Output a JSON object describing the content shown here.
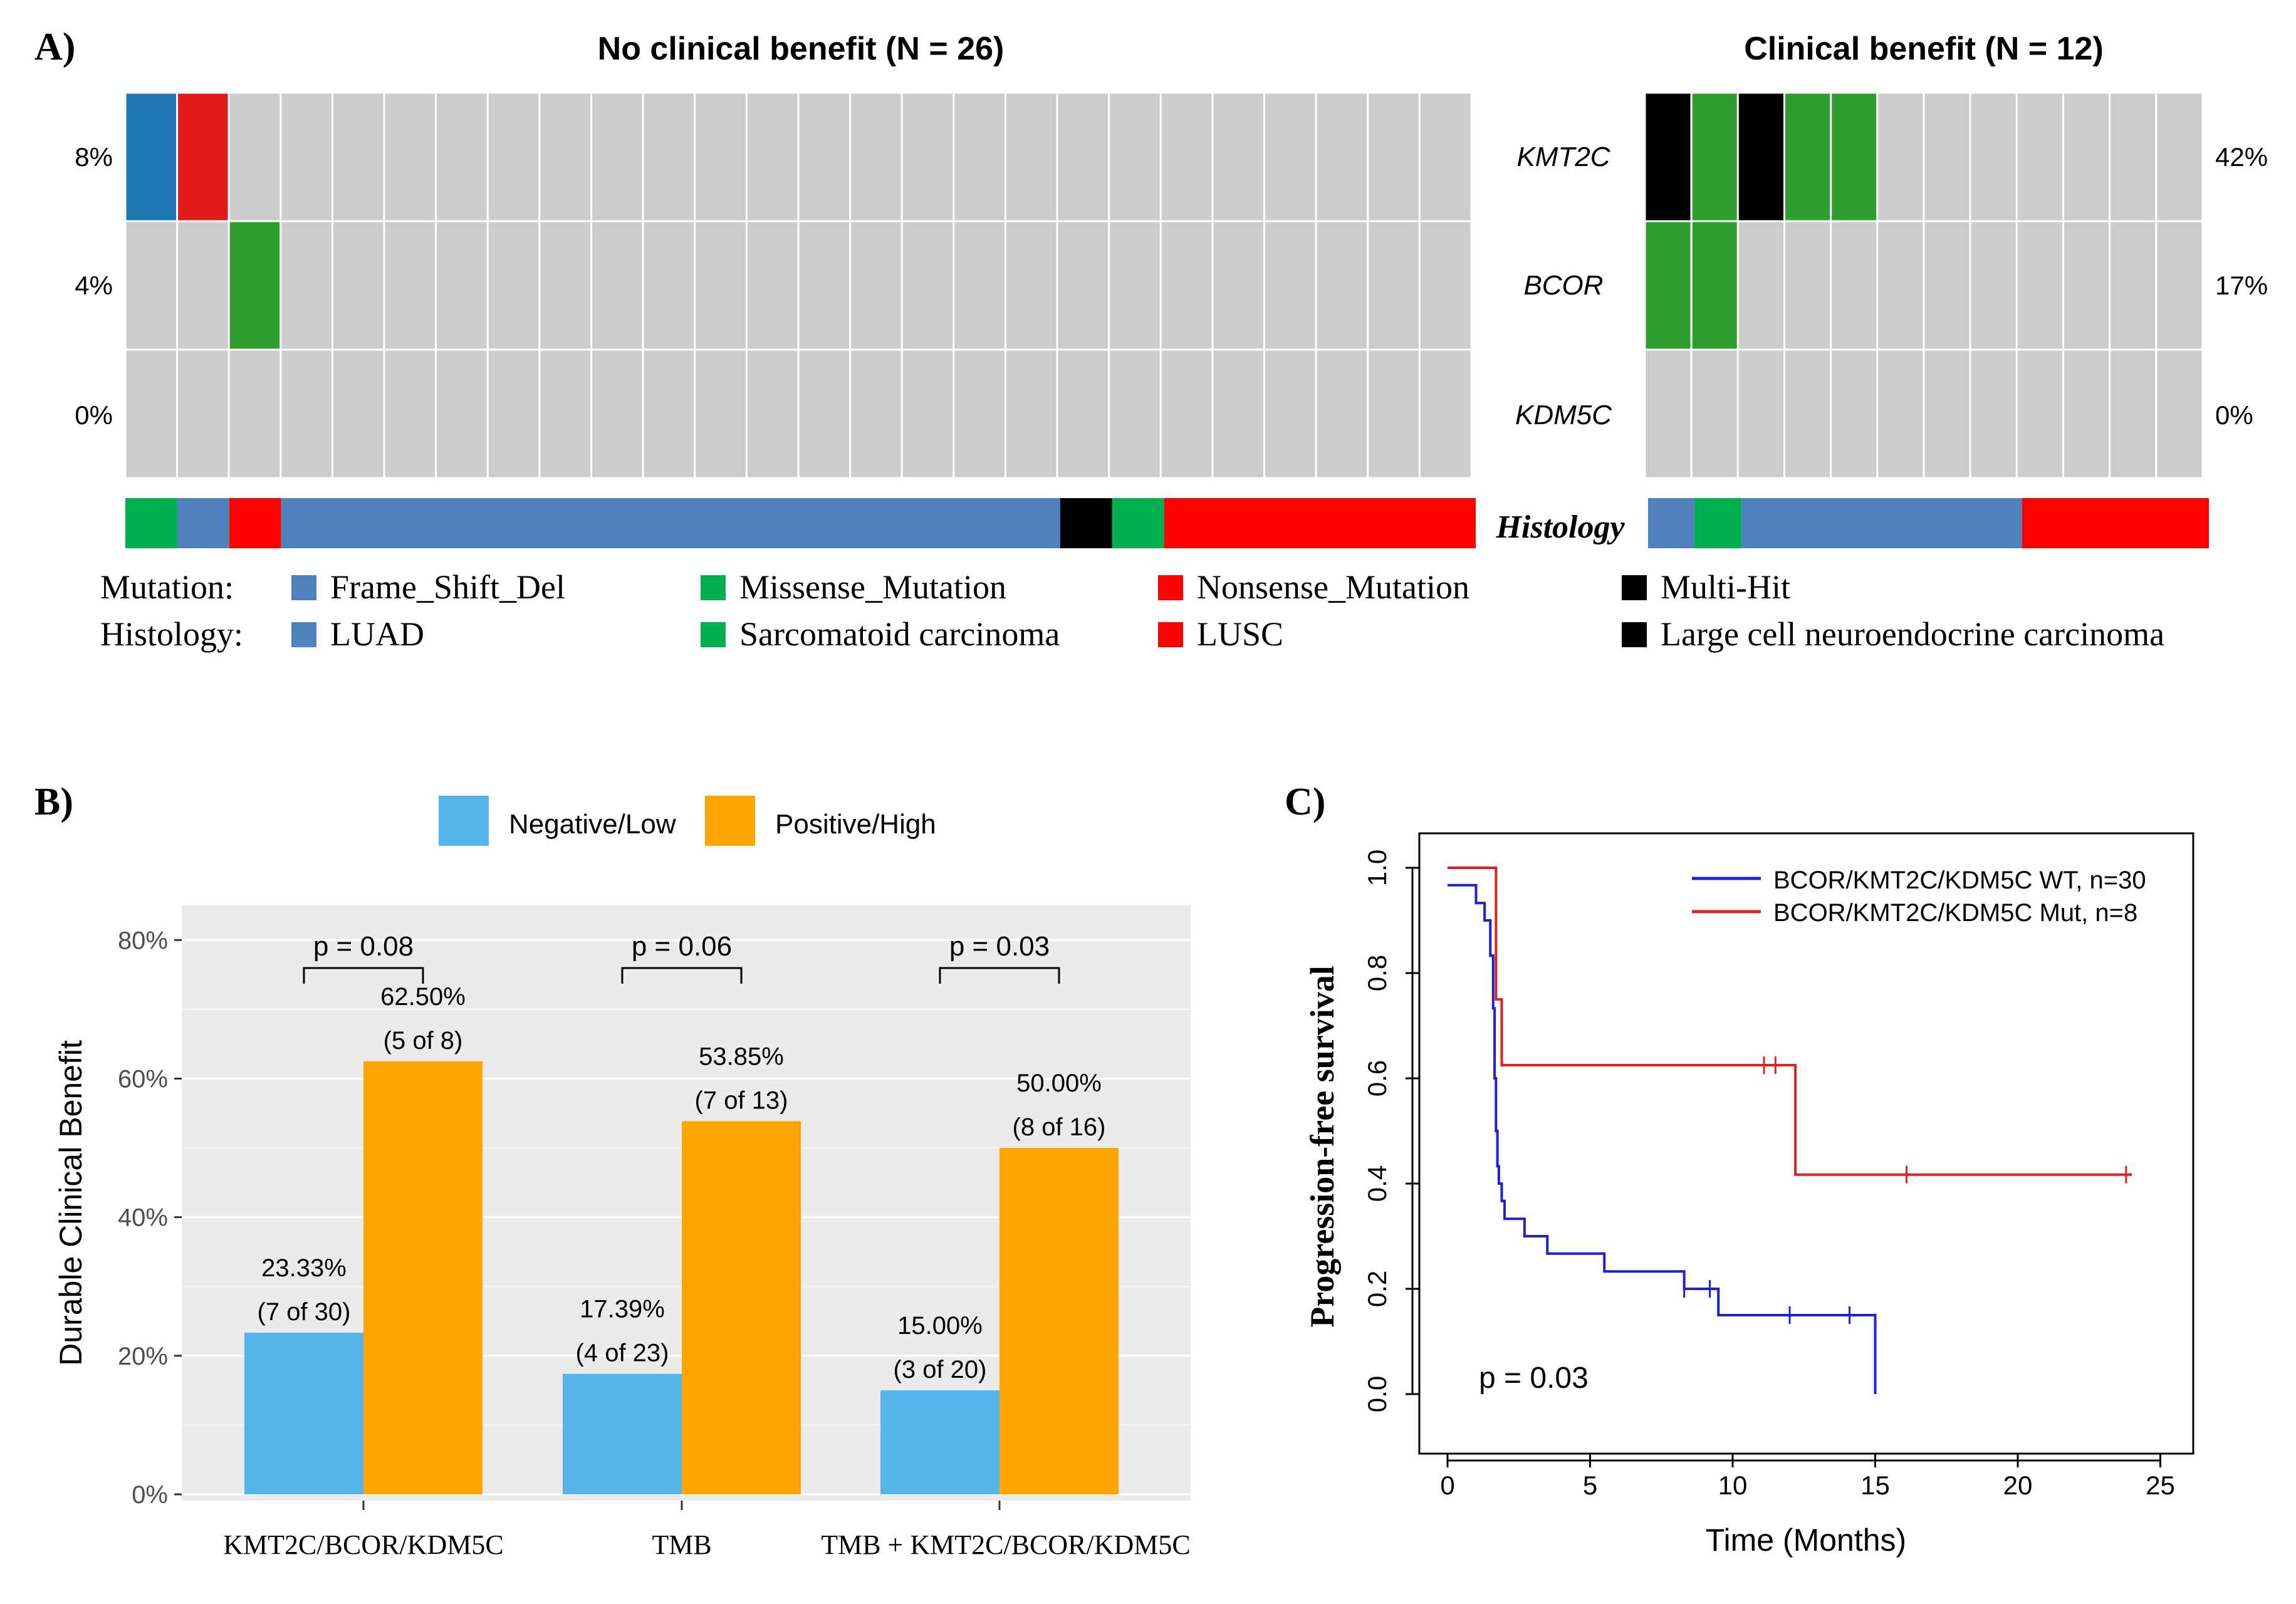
{
  "colors": {
    "gray_cell": "#cccccc",
    "blue_cell": "#1f78b4",
    "hist_blue": "#4f81bd",
    "green": "#2e9e2e",
    "green_bright": "#00b050",
    "red": "#e31a1c",
    "red_bright": "#ff0000",
    "black": "#000000",
    "bar_low": "#56b4e9",
    "bar_high": "#ffa500",
    "panel_bg": "#ebebeb",
    "km_wt": "#1f1fd6",
    "km_mut": "#e02020"
  },
  "panel_a": {
    "label": "A)",
    "left_title": "No clinical benefit (N = 26)",
    "right_title": "Clinical benefit (N = 12)",
    "genes": [
      "KMT2C",
      "BCOR",
      "KDM5C"
    ],
    "left_pcts": [
      "8%",
      "4%",
      "0%"
    ],
    "right_pcts": [
      "42%",
      "17%",
      "0%"
    ],
    "histology_label": "Histology",
    "left_n": 26,
    "right_n": 12,
    "left_mutations": [
      {
        "row": 0,
        "col": 0,
        "type": "Frame_Shift_Del"
      },
      {
        "row": 0,
        "col": 1,
        "type": "Nonsense_Mutation"
      },
      {
        "row": 1,
        "col": 2,
        "type": "Missense_Mutation"
      }
    ],
    "right_mutations": [
      {
        "row": 0,
        "col": 0,
        "type": "Multi-Hit"
      },
      {
        "row": 0,
        "col": 1,
        "type": "Missense_Mutation"
      },
      {
        "row": 0,
        "col": 2,
        "type": "Multi-Hit"
      },
      {
        "row": 0,
        "col": 3,
        "type": "Missense_Mutation"
      },
      {
        "row": 0,
        "col": 4,
        "type": "Missense_Mutation"
      },
      {
        "row": 1,
        "col": 0,
        "type": "Missense_Mutation"
      },
      {
        "row": 1,
        "col": 1,
        "type": "Missense_Mutation"
      }
    ],
    "left_histology": [
      {
        "type": "Sarcomatoid carcinoma",
        "count": 1
      },
      {
        "type": "LUAD",
        "count": 1
      },
      {
        "type": "LUSC",
        "count": 1
      },
      {
        "type": "LUAD",
        "count": 15
      },
      {
        "type": "Large cell neuroendocrine carcinoma",
        "count": 1
      },
      {
        "type": "Sarcomatoid carcinoma",
        "count": 1
      },
      {
        "type": "LUSC",
        "count": 6
      }
    ],
    "right_histology": [
      {
        "type": "LUAD",
        "count": 1
      },
      {
        "type": "Sarcomatoid carcinoma",
        "count": 1
      },
      {
        "type": "LUAD",
        "count": 6
      },
      {
        "type": "LUSC",
        "count": 4
      }
    ],
    "legend": {
      "mutation_title": "Mutation:",
      "histology_title": "Histology:",
      "mutation_items": [
        {
          "label": "Frame_Shift_Del",
          "color": "#4f81bd"
        },
        {
          "label": "Missense_Mutation",
          "color": "#00b050"
        },
        {
          "label": "Nonsense_Mutation",
          "color": "#ff0000"
        },
        {
          "label": "Multi-Hit",
          "color": "#000000"
        }
      ],
      "histology_items": [
        {
          "label": "LUAD",
          "color": "#4f81bd"
        },
        {
          "label": "Sarcomatoid carcinoma",
          "color": "#00b050"
        },
        {
          "label": "LUSC",
          "color": "#ff0000"
        },
        {
          "label": "Large cell neuroendocrine carcinoma",
          "color": "#000000"
        }
      ]
    }
  },
  "chart_data": [
    {
      "type": "bar",
      "panel": "B)",
      "title": "",
      "xlabel": "",
      "ylabel": "Durable Clinical Benefit",
      "ylim": [
        0,
        0.85
      ],
      "yticks": [
        0,
        0.2,
        0.4,
        0.6,
        0.8
      ],
      "ytick_labels": [
        "0%",
        "20%",
        "40%",
        "60%",
        "80%"
      ],
      "categories": [
        "KMT2C/BCOR/KDM5C",
        "TMB",
        "TMB  + KMT2C/BCOR/KDM5C"
      ],
      "series": [
        {
          "name": "Negative/Low",
          "values": [
            0.2333,
            0.1739,
            0.15
          ],
          "pct_labels": [
            "23.33%",
            "17.39%",
            "15.00%"
          ],
          "count_labels": [
            "(7 of 30)",
            "(4 of 23)",
            "(3 of 20)"
          ]
        },
        {
          "name": "Positive/High",
          "values": [
            0.625,
            0.5385,
            0.5
          ],
          "pct_labels": [
            "62.50%",
            "53.85%",
            "50.00%"
          ],
          "count_labels": [
            "(5 of 8)",
            "(7 of 13)",
            "(8 of 16)"
          ]
        }
      ],
      "pvalues": [
        "p = 0.08",
        "p = 0.06",
        "p = 0.03"
      ],
      "legend": [
        "Negative/Low",
        "Positive/High"
      ]
    },
    {
      "type": "line",
      "panel": "C)",
      "title": "",
      "xlabel": "Time (Months)",
      "ylabel": "Progression-free survival",
      "xlim": [
        0,
        25
      ],
      "ylim": [
        0,
        1
      ],
      "xticks": [
        0,
        5,
        10,
        15,
        20,
        25
      ],
      "yticks": [
        "0.0",
        "0.2",
        "0.4",
        "0.6",
        "0.8",
        "1.0"
      ],
      "annotation": "p = 0.03",
      "series": [
        {
          "name": "BCOR/KMT2C/KDM5C WT, n=30",
          "steps": [
            [
              0,
              0.967
            ],
            [
              0.7,
              0.967
            ],
            [
              1.0,
              0.933
            ],
            [
              1.3,
              0.9
            ],
            [
              1.5,
              0.833
            ],
            [
              1.6,
              0.733
            ],
            [
              1.65,
              0.6
            ],
            [
              1.7,
              0.5
            ],
            [
              1.75,
              0.433
            ],
            [
              1.8,
              0.4
            ],
            [
              1.9,
              0.367
            ],
            [
              2.0,
              0.333
            ],
            [
              2.7,
              0.3
            ],
            [
              3.5,
              0.267
            ],
            [
              5.5,
              0.233
            ],
            [
              8.3,
              0.2
            ],
            [
              9.5,
              0.15
            ],
            [
              15.0,
              0.0
            ]
          ],
          "end": 15.0,
          "censor": [
            [
              8.3,
              0.2
            ],
            [
              9.2,
              0.2
            ],
            [
              12.0,
              0.15
            ],
            [
              14.1,
              0.15
            ]
          ]
        },
        {
          "name": "BCOR/KMT2C/KDM5C Mut, n=8",
          "steps": [
            [
              0,
              1.0
            ],
            [
              1.6,
              1.0
            ],
            [
              1.7,
              0.75
            ],
            [
              1.9,
              0.625
            ],
            [
              12.2,
              0.417
            ]
          ],
          "end": 24.0,
          "censor": [
            [
              11.1,
              0.625
            ],
            [
              11.5,
              0.625
            ],
            [
              16.1,
              0.417
            ],
            [
              23.8,
              0.417
            ]
          ]
        }
      ]
    }
  ]
}
